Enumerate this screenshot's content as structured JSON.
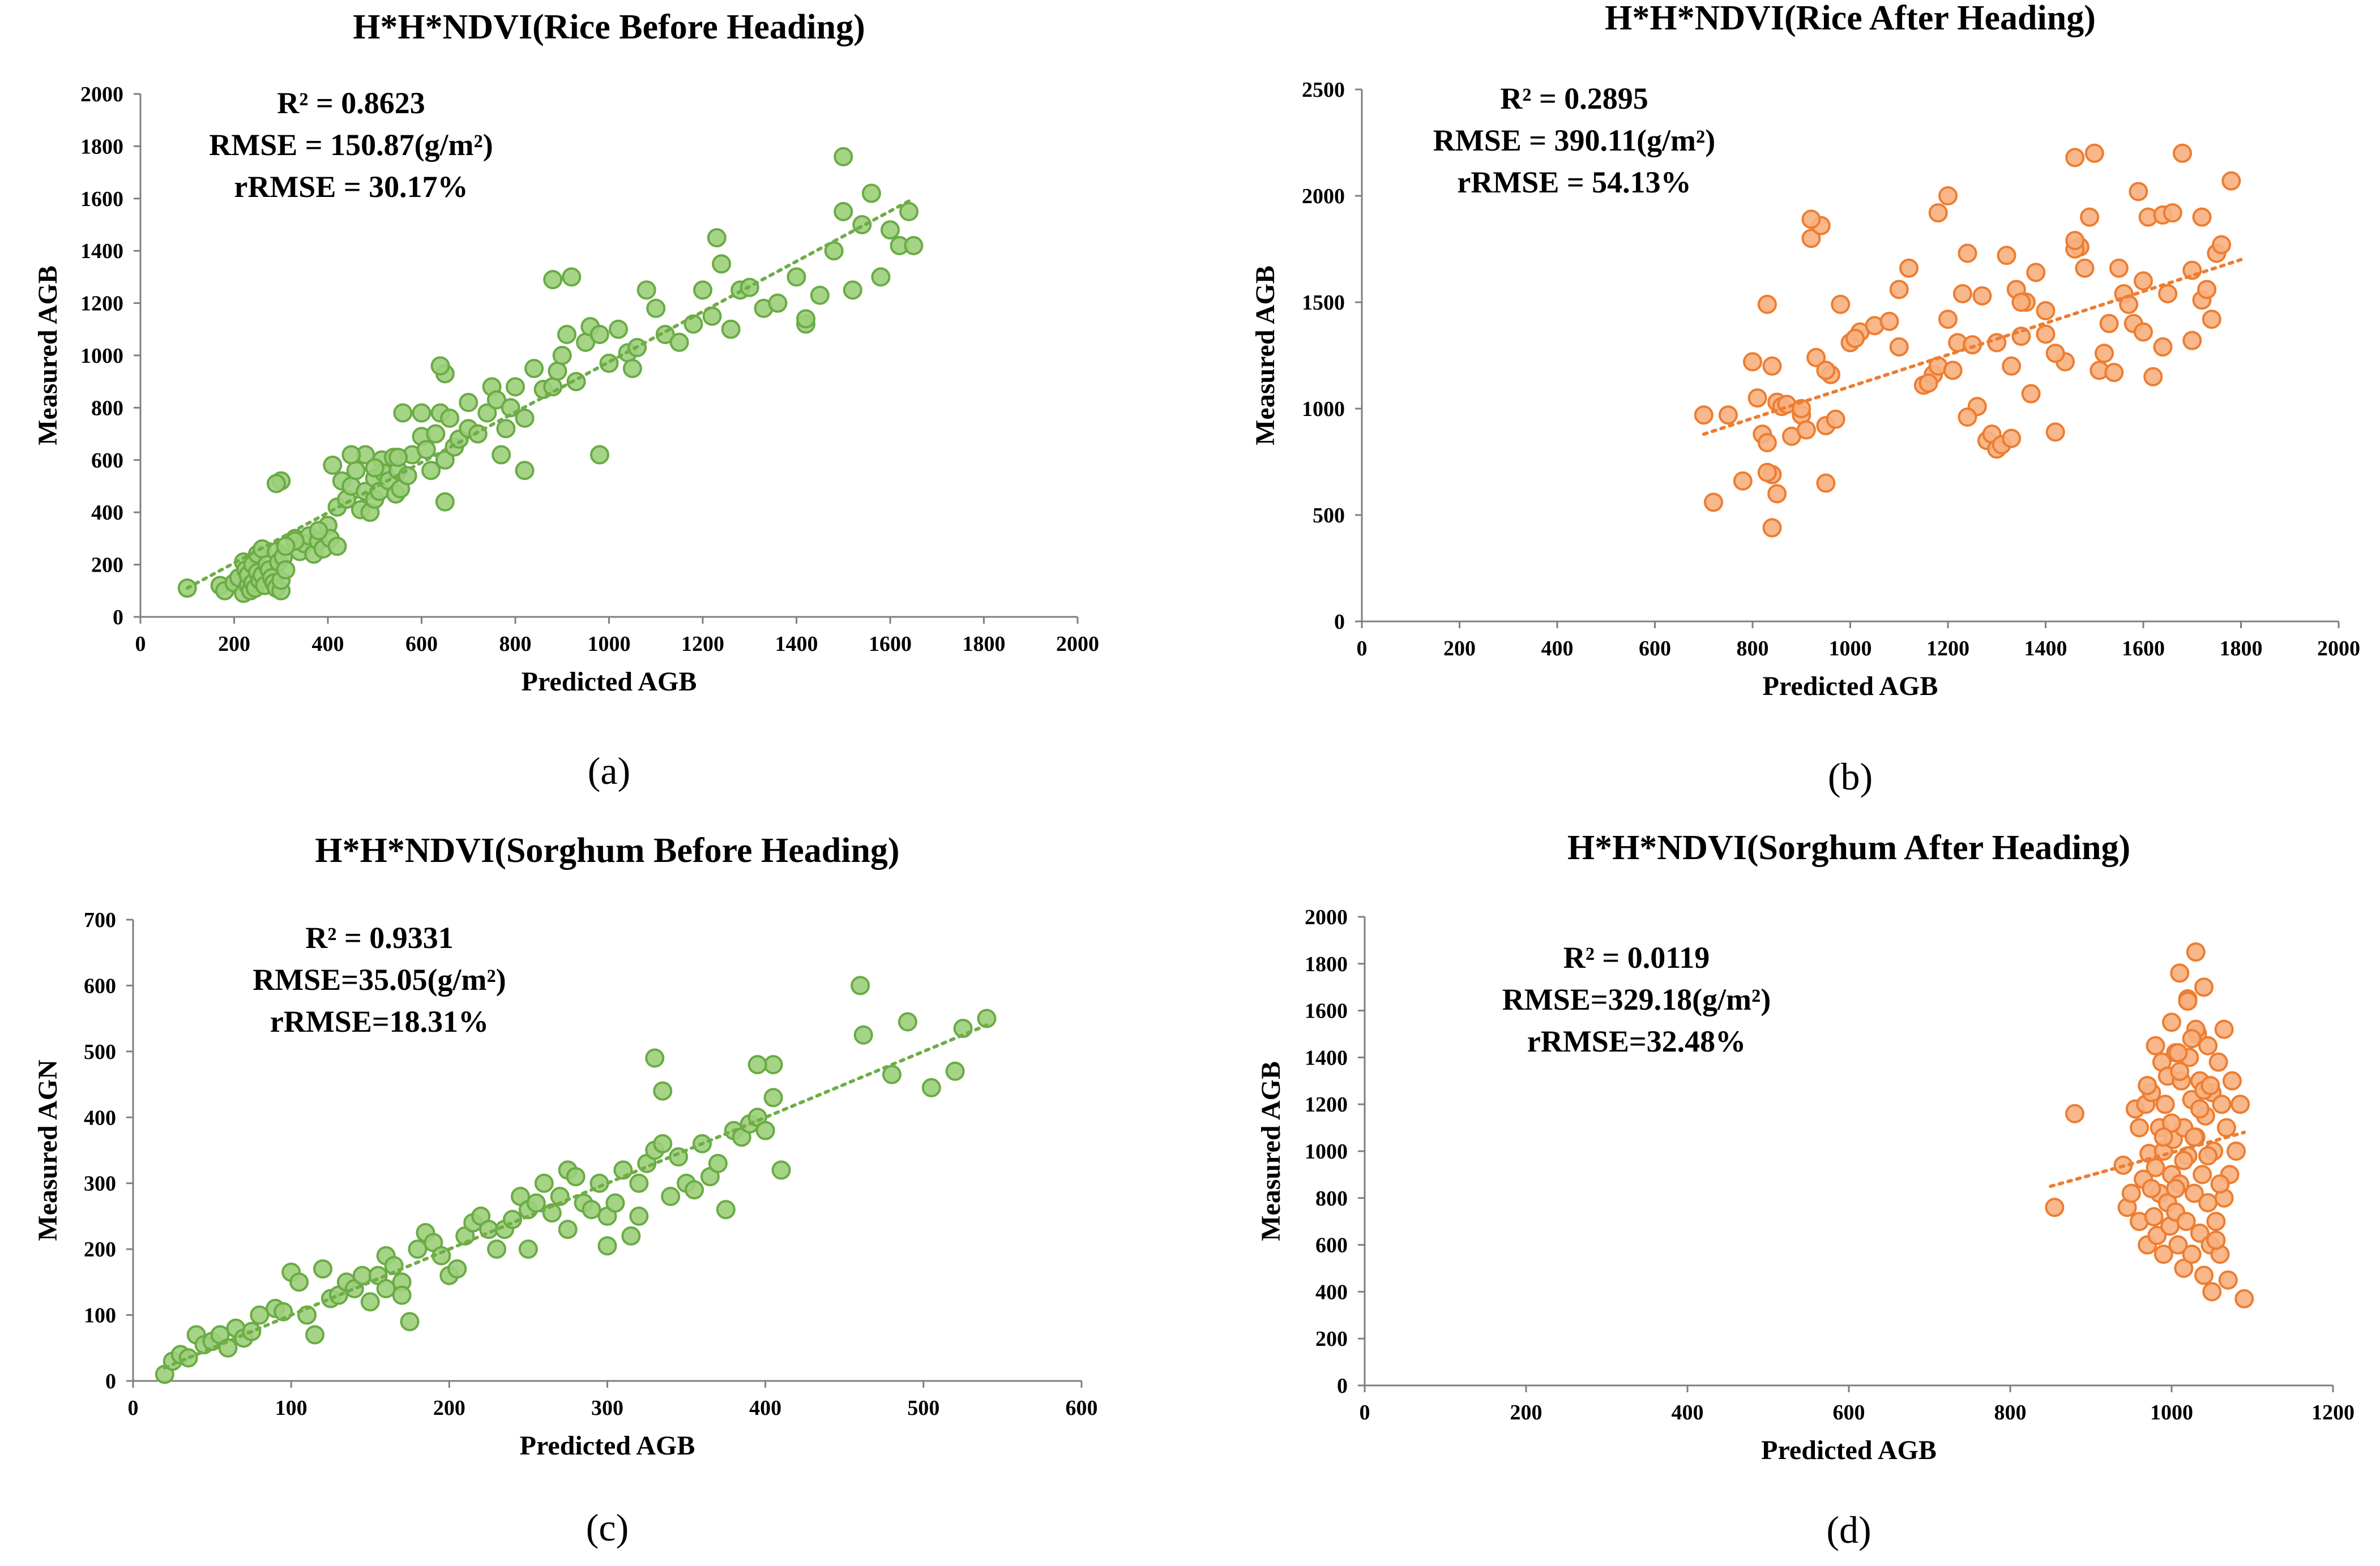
{
  "chart_data": [
    {
      "type": "scatter",
      "panel_label": "(a)",
      "title": "H*H*NDVI(Rice Before Heading)",
      "xlabel": "Predicted AGB",
      "ylabel": "Measured AGB",
      "xlim": [
        0,
        2000
      ],
      "ylim": [
        0,
        2000
      ],
      "xticks": [
        0,
        200,
        400,
        600,
        800,
        1000,
        1200,
        1400,
        1600,
        1800,
        2000
      ],
      "yticks": [
        0,
        200,
        400,
        600,
        800,
        1000,
        1200,
        1400,
        1600,
        1800,
        2000
      ],
      "stats": [
        "R² = 0.8623",
        "RMSE = 150.87(g/m²)",
        "rRMSE = 30.17%"
      ],
      "marker_fill": "#9ccf7a",
      "marker_edge": "#6aab45",
      "trend_color": "#70ad47",
      "trendline": {
        "x": [
          100,
          1650
        ],
        "y": [
          110,
          1600
        ]
      },
      "points": {
        "x": [
          100,
          170,
          180,
          200,
          210,
          220,
          220,
          225,
          230,
          230,
          235,
          240,
          240,
          245,
          250,
          250,
          255,
          260,
          260,
          265,
          270,
          275,
          280,
          285,
          290,
          290,
          295,
          300,
          300,
          300,
          305,
          310,
          330,
          340,
          350,
          360,
          370,
          380,
          390,
          400,
          405,
          410,
          420,
          430,
          440,
          450,
          460,
          470,
          480,
          480,
          490,
          500,
          500,
          510,
          515,
          520,
          530,
          540,
          545,
          550,
          555,
          560,
          570,
          580,
          600,
          610,
          620,
          630,
          640,
          650,
          650,
          660,
          670,
          680,
          700,
          720,
          740,
          750,
          760,
          780,
          790,
          800,
          820,
          840,
          860,
          880,
          890,
          900,
          910,
          920,
          930,
          950,
          960,
          980,
          1000,
          1020,
          1040,
          1060,
          1080,
          1100,
          1120,
          1150,
          1180,
          1200,
          1220,
          1240,
          1260,
          1280,
          1300,
          1330,
          1360,
          1400,
          1420,
          1450,
          1480,
          1500,
          1520,
          1540,
          1560,
          1580,
          1600,
          1620,
          1640,
          1650,
          290,
          640,
          880,
          1230,
          1050,
          1500,
          1420,
          420,
          550,
          650,
          700,
          770,
          820,
          980,
          600,
          500,
          450,
          380,
          330,
          310
        ],
        "y": [
          110,
          120,
          100,
          130,
          150,
          90,
          210,
          180,
          120,
          160,
          100,
          200,
          130,
          110,
          170,
          240,
          140,
          260,
          160,
          120,
          200,
          180,
          150,
          130,
          110,
          250,
          210,
          520,
          100,
          140,
          230,
          180,
          300,
          250,
          280,
          310,
          240,
          290,
          260,
          350,
          300,
          580,
          420,
          520,
          450,
          500,
          560,
          410,
          480,
          620,
          400,
          450,
          530,
          480,
          600,
          550,
          520,
          610,
          470,
          560,
          490,
          780,
          540,
          620,
          690,
          640,
          560,
          700,
          780,
          600,
          930,
          760,
          650,
          680,
          720,
          700,
          780,
          880,
          830,
          720,
          800,
          880,
          760,
          950,
          870,
          880,
          940,
          1000,
          1080,
          1300,
          900,
          1050,
          1110,
          1080,
          970,
          1100,
          1010,
          1030,
          1250,
          1180,
          1080,
          1050,
          1120,
          1250,
          1150,
          1350,
          1100,
          1250,
          1260,
          1180,
          1200,
          1300,
          1120,
          1230,
          1400,
          1550,
          1250,
          1500,
          1620,
          1300,
          1480,
          1420,
          1550,
          1420,
          510,
          960,
          1290,
          1450,
          950,
          1760,
          1140,
          270,
          610,
          440,
          820,
          620,
          560,
          620,
          780,
          570,
          620,
          330,
          290,
          270
        ]
      }
    },
    {
      "type": "scatter",
      "panel_label": "(b)",
      "title": "H*H*NDVI(Rice After Heading)",
      "xlabel": "Predicted AGB",
      "ylabel": "Measured AGB",
      "xlim": [
        0,
        2000
      ],
      "ylim": [
        0,
        2500
      ],
      "xticks": [
        0,
        200,
        400,
        600,
        800,
        1000,
        1200,
        1400,
        1600,
        1800,
        2000
      ],
      "yticks": [
        0,
        500,
        1000,
        1500,
        2000,
        2500
      ],
      "stats": [
        "R² = 0.2895",
        "RMSE = 390.11(g/m²)",
        "rRMSE = 54.13%"
      ],
      "marker_fill": "#f7b07f",
      "marker_edge": "#ed7d31",
      "trend_color": "#ed7d31",
      "trendline": {
        "x": [
          700,
          1800
        ],
        "y": [
          880,
          1700
        ]
      },
      "points": {
        "x": [
          700,
          720,
          750,
          780,
          800,
          810,
          820,
          830,
          840,
          840,
          850,
          860,
          870,
          880,
          900,
          910,
          920,
          930,
          940,
          950,
          960,
          980,
          1000,
          1020,
          1050,
          1080,
          1100,
          1120,
          1150,
          1170,
          1180,
          1200,
          1210,
          1220,
          1230,
          1240,
          1250,
          1260,
          1270,
          1280,
          1290,
          1300,
          1310,
          1320,
          1330,
          1340,
          1350,
          1370,
          1380,
          1400,
          1420,
          1440,
          1460,
          1470,
          1480,
          1500,
          1510,
          1520,
          1540,
          1550,
          1560,
          1570,
          1580,
          1590,
          1600,
          1610,
          1620,
          1640,
          1650,
          1660,
          1680,
          1700,
          1720,
          1730,
          1740,
          1750,
          1760,
          1780,
          1200,
          1460,
          1490,
          1180,
          950,
          920,
          1240,
          840,
          830,
          1330,
          1360,
          1400,
          830,
          850,
          900,
          950,
          970,
          1010,
          1100,
          1160,
          1300,
          1350,
          1420,
          1460,
          1530,
          1600,
          1640,
          1700,
          1720
        ],
        "y": [
          970,
          560,
          970,
          660,
          1220,
          1050,
          880,
          1490,
          440,
          690,
          1030,
          1010,
          1020,
          870,
          970,
          900,
          1800,
          1240,
          1860,
          650,
          1160,
          1490,
          1310,
          1360,
          1390,
          1410,
          1290,
          1660,
          1110,
          1160,
          1200,
          1420,
          1180,
          1310,
          1540,
          1730,
          1300,
          1010,
          1530,
          850,
          880,
          810,
          830,
          1720,
          860,
          1560,
          1340,
          1070,
          1640,
          1460,
          890,
          1220,
          2180,
          1760,
          1660,
          2200,
          1180,
          1260,
          1170,
          1660,
          1540,
          1490,
          1400,
          2020,
          1360,
          1900,
          1150,
          1910,
          1540,
          1920,
          2200,
          1650,
          1510,
          1560,
          1420,
          1730,
          1770,
          2070,
          2000,
          1750,
          1900,
          1920,
          920,
          1890,
          960,
          1200,
          840,
          1200,
          1500,
          1350,
          700,
          600,
          1000,
          1180,
          950,
          1330,
          1560,
          1120,
          1310,
          1500,
          1260,
          1790,
          1400,
          1600,
          1290,
          1320,
          1900
        ]
      }
    },
    {
      "type": "scatter",
      "panel_label": "(c)",
      "title": "H*H*NDVI(Sorghum Before Heading)",
      "xlabel": "Predicted AGB",
      "ylabel": "Measured AGN",
      "xlim": [
        0,
        600
      ],
      "ylim": [
        0,
        700
      ],
      "xticks": [
        0,
        100,
        200,
        300,
        400,
        500,
        600
      ],
      "yticks": [
        0,
        100,
        200,
        300,
        400,
        500,
        600,
        700
      ],
      "stats": [
        "R² = 0.9331",
        "RMSE=35.05(g/m²)",
        "rRMSE=18.31%"
      ],
      "marker_fill": "#9ccf7a",
      "marker_edge": "#6aab45",
      "trend_color": "#70ad47",
      "trendline": {
        "x": [
          20,
          540
        ],
        "y": [
          20,
          540
        ]
      },
      "points": {
        "x": [
          20,
          25,
          30,
          35,
          40,
          45,
          50,
          55,
          60,
          65,
          70,
          75,
          80,
          90,
          95,
          100,
          105,
          110,
          115,
          120,
          125,
          130,
          135,
          140,
          145,
          150,
          155,
          160,
          165,
          170,
          175,
          180,
          185,
          190,
          195,
          200,
          205,
          210,
          215,
          220,
          225,
          230,
          235,
          240,
          245,
          250,
          255,
          260,
          265,
          270,
          275,
          280,
          285,
          290,
          295,
          300,
          305,
          310,
          315,
          320,
          325,
          330,
          335,
          340,
          345,
          350,
          355,
          360,
          365,
          370,
          375,
          380,
          385,
          390,
          395,
          400,
          405,
          410,
          460,
          462,
          480,
          490,
          505,
          520,
          525,
          540,
          330,
          335,
          395,
          405,
          160,
          170,
          250,
          275,
          300,
          320
        ],
        "y": [
          10,
          30,
          40,
          35,
          70,
          55,
          60,
          70,
          50,
          80,
          65,
          75,
          100,
          110,
          105,
          165,
          150,
          100,
          70,
          170,
          125,
          130,
          150,
          140,
          160,
          120,
          160,
          190,
          175,
          150,
          90,
          200,
          225,
          210,
          190,
          160,
          170,
          220,
          240,
          250,
          230,
          200,
          230,
          245,
          280,
          260,
          270,
          300,
          255,
          280,
          320,
          310,
          270,
          260,
          300,
          250,
          270,
          320,
          220,
          300,
          330,
          350,
          360,
          280,
          340,
          300,
          290,
          360,
          310,
          330,
          260,
          380,
          370,
          390,
          400,
          380,
          480,
          320,
          600,
          525,
          465,
          545,
          445,
          470,
          535,
          550,
          490,
          440,
          480,
          430,
          140,
          130,
          200,
          230,
          205,
          250
        ]
      }
    },
    {
      "type": "scatter",
      "panel_label": "(d)",
      "title": "H*H*NDVI(Sorghum After Heading)",
      "xlabel": "Predicted AGB",
      "ylabel": "Measured AGB",
      "xlim": [
        0,
        1200
      ],
      "ylim": [
        0,
        2000
      ],
      "xticks": [
        0,
        200,
        400,
        600,
        800,
        1000,
        1200
      ],
      "yticks": [
        0,
        200,
        400,
        600,
        800,
        1000,
        1200,
        1400,
        1600,
        1800,
        2000
      ],
      "stats": [
        "R² = 0.0119",
        "RMSE=329.18(g/m²)",
        "rRMSE=32.48%"
      ],
      "marker_fill": "#f7b07f",
      "marker_edge": "#ed7d31",
      "trend_color": "#ed7d31",
      "trendline": {
        "x": [
          850,
          1090
        ],
        "y": [
          850,
          1080
        ]
      },
      "points": {
        "x": [
          855,
          880,
          940,
          945,
          950,
          955,
          960,
          960,
          965,
          968,
          970,
          972,
          975,
          978,
          980,
          980,
          982,
          985,
          985,
          988,
          990,
          990,
          992,
          995,
          995,
          998,
          1000,
          1000,
          1002,
          1005,
          1005,
          1008,
          1010,
          1010,
          1012,
          1015,
          1015,
          1018,
          1020,
          1020,
          1022,
          1025,
          1025,
          1028,
          1030,
          1030,
          1032,
          1035,
          1035,
          1038,
          1040,
          1040,
          1042,
          1045,
          1045,
          1048,
          1050,
          1050,
          1052,
          1055,
          1058,
          1060,
          1062,
          1065,
          1068,
          1070,
          1072,
          1075,
          1080,
          1085,
          1090,
          1030,
          1020,
          1010,
          1040,
          1000,
          1025,
          1015,
          1035,
          1005,
          990,
          1045,
          1055,
          1060,
          1065,
          970,
          975,
          1008,
          1028,
          1048
        ],
        "y": [
          760,
          1160,
          940,
          760,
          820,
          1180,
          700,
          1100,
          880,
          1200,
          600,
          990,
          1250,
          720,
          930,
          1450,
          640,
          1100,
          820,
          1380,
          560,
          1000,
          1200,
          780,
          1320,
          680,
          1550,
          900,
          1050,
          740,
          1420,
          600,
          1760,
          860,
          1300,
          500,
          1100,
          700,
          1650,
          980,
          1400,
          560,
          1220,
          820,
          1850,
          1060,
          1500,
          650,
          1300,
          900,
          1700,
          470,
          1150,
          780,
          1450,
          600,
          1250,
          400,
          1000,
          700,
          1380,
          560,
          1200,
          800,
          1100,
          450,
          900,
          1300,
          1000,
          1200,
          370,
          1520,
          1640,
          1340,
          1260,
          1120,
          1480,
          960,
          1180,
          840,
          1060,
          980,
          620,
          860,
          1520,
          1280,
          840,
          1420,
          1060,
          1280
        ]
      }
    }
  ]
}
